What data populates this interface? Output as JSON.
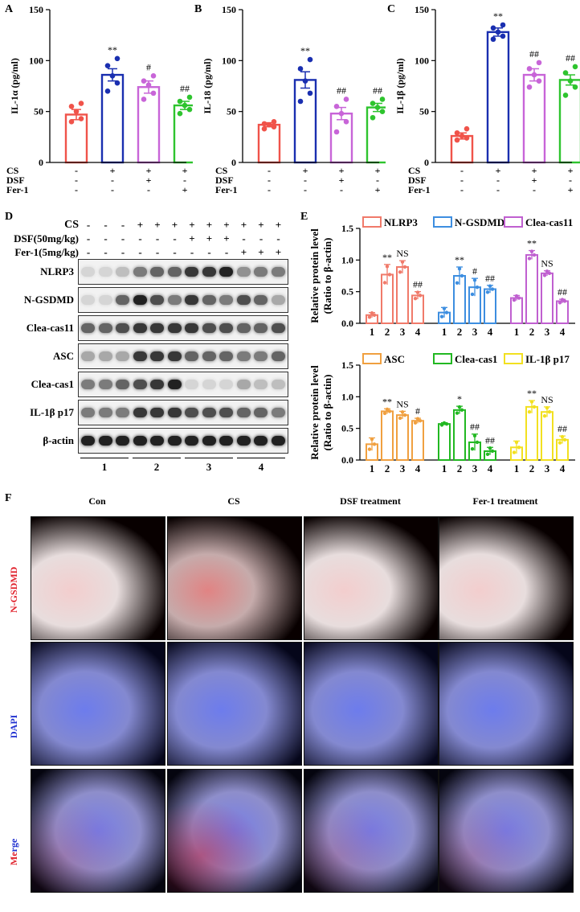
{
  "panels": {
    "A": "A",
    "B": "B",
    "C": "C",
    "D": "D",
    "E": "E",
    "F": "F"
  },
  "treatment_rows": {
    "labels": [
      "CS",
      "DSF",
      "Fer-1"
    ],
    "CS": [
      "-",
      "+",
      "+",
      "+"
    ],
    "DSF": [
      "-",
      "-",
      "+",
      "-"
    ],
    "Fer-1": [
      "-",
      "-",
      "-",
      "+"
    ]
  },
  "colors": {
    "group1": "#f0534a",
    "group2": "#1a2fb0",
    "group3": "#c865d8",
    "group4": "#2ec42e",
    "nlrp3": "#f07a6a",
    "ngsdmd": "#3d8ee0",
    "cleacas11": "#c060d0",
    "asc": "#f0a040",
    "cleacas1": "#22b822",
    "il1b": "#f2e020"
  },
  "chart_data": [
    {
      "id": "A",
      "type": "bar",
      "ylabel": "IL-1α  (pg/ml)",
      "ylim": [
        0,
        150
      ],
      "yticks": [
        0,
        50,
        100,
        150
      ],
      "categories": [
        "1",
        "2",
        "3",
        "4"
      ],
      "values": [
        47,
        86,
        74,
        56
      ],
      "errors": [
        5,
        6,
        6,
        4
      ],
      "points": [
        [
          40,
          43,
          50,
          55,
          58
        ],
        [
          70,
          78,
          85,
          95,
          102
        ],
        [
          62,
          68,
          76,
          80,
          85
        ],
        [
          48,
          52,
          56,
          60,
          64
        ]
      ],
      "annotations": [
        "",
        "**",
        "#",
        "##"
      ]
    },
    {
      "id": "B",
      "type": "bar",
      "ylabel": "IL-18  (pg/ml)",
      "ylim": [
        0,
        150
      ],
      "yticks": [
        0,
        50,
        100,
        150
      ],
      "categories": [
        "1",
        "2",
        "3",
        "4"
      ],
      "values": [
        37,
        81,
        48,
        54
      ],
      "errors": [
        2,
        8,
        6,
        4
      ],
      "points": [
        [
          33,
          35,
          37,
          38,
          40
        ],
        [
          60,
          68,
          80,
          92,
          101
        ],
        [
          30,
          40,
          48,
          55,
          62
        ],
        [
          44,
          50,
          54,
          58,
          62
        ]
      ],
      "annotations": [
        "",
        "**",
        "##",
        "##"
      ]
    },
    {
      "id": "C",
      "type": "bar",
      "ylabel": "IL-1β  (pg/ml)",
      "ylim": [
        0,
        150
      ],
      "yticks": [
        0,
        50,
        100,
        150
      ],
      "categories": [
        "1",
        "2",
        "3",
        "4"
      ],
      "values": [
        26,
        128,
        86,
        81
      ],
      "errors": [
        3,
        4,
        6,
        5
      ],
      "points": [
        [
          22,
          24,
          26,
          29,
          33
        ],
        [
          121,
          124,
          128,
          132,
          135
        ],
        [
          74,
          80,
          86,
          92,
          98
        ],
        [
          66,
          74,
          80,
          88,
          94
        ]
      ],
      "annotations": [
        "",
        "**",
        "##",
        "##"
      ]
    },
    {
      "id": "E1",
      "type": "bar",
      "ylabel_line1": "Relative protein level",
      "ylabel_line2": "(Ratio to β-actin)",
      "ylim": [
        0,
        1.5
      ],
      "yticks": [
        "0.0",
        "0.5",
        "1.0",
        "1.5"
      ],
      "groups": [
        {
          "name": "NLRP3",
          "color_key": "nlrp3",
          "values": [
            0.13,
            0.77,
            0.89,
            0.44
          ],
          "errors": [
            0.04,
            0.16,
            0.1,
            0.06
          ],
          "annotations": [
            "",
            "**",
            "NS",
            "##"
          ]
        },
        {
          "name": "N-GSDMD",
          "color_key": "ngsdmd",
          "values": [
            0.17,
            0.75,
            0.57,
            0.54
          ],
          "errors": [
            0.08,
            0.14,
            0.14,
            0.06
          ],
          "annotations": [
            "",
            "**",
            "#",
            "##"
          ]
        },
        {
          "name": "Clea-cas11",
          "color_key": "cleacas11",
          "values": [
            0.4,
            1.08,
            0.79,
            0.35
          ],
          "errors": [
            0.04,
            0.07,
            0.04,
            0.03
          ],
          "annotations": [
            "",
            "**",
            "NS",
            "##"
          ]
        }
      ],
      "categories": [
        "1",
        "2",
        "3",
        "4"
      ]
    },
    {
      "id": "E2",
      "type": "bar",
      "ylabel_line1": "Relative protein level",
      "ylabel_line2": "(Ratio to β-actin)",
      "ylim": [
        0,
        1.5
      ],
      "yticks": [
        "0.0",
        "0.5",
        "1.0",
        "1.5"
      ],
      "groups": [
        {
          "name": "ASC",
          "color_key": "asc",
          "values": [
            0.25,
            0.77,
            0.71,
            0.62
          ],
          "errors": [
            0.1,
            0.04,
            0.06,
            0.04
          ],
          "annotations": [
            "",
            "**",
            "NS",
            "#"
          ]
        },
        {
          "name": "Clea-cas1",
          "color_key": "cleacas1",
          "values": [
            0.57,
            0.79,
            0.28,
            0.14
          ],
          "errors": [
            0.02,
            0.06,
            0.13,
            0.06
          ],
          "annotations": [
            "",
            "*",
            "##",
            "##"
          ]
        },
        {
          "name": "IL-1β p17",
          "color_key": "il1b",
          "values": [
            0.2,
            0.84,
            0.76,
            0.32
          ],
          "errors": [
            0.1,
            0.1,
            0.08,
            0.06
          ],
          "annotations": [
            "",
            "**",
            "NS",
            "##"
          ]
        }
      ],
      "categories": [
        "1",
        "2",
        "3",
        "4"
      ]
    }
  ],
  "western": {
    "header_rows": [
      {
        "label": "CS",
        "signs": [
          "-",
          "-",
          "-",
          "+",
          "+",
          "+",
          "+",
          "+",
          "+",
          "+",
          "+",
          "+"
        ]
      },
      {
        "label": "DSF(50mg/kg)",
        "signs": [
          "-",
          "-",
          "-",
          "-",
          "-",
          "-",
          "+",
          "+",
          "+",
          "-",
          "-",
          "-"
        ]
      },
      {
        "label": "Fer-1(5mg/kg)",
        "signs": [
          "-",
          "-",
          "-",
          "-",
          "-",
          "-",
          "-",
          "-",
          "-",
          "+",
          "+",
          "+"
        ]
      }
    ],
    "blots": [
      "NLRP3",
      "N-GSDMD",
      "Clea-cas11",
      "ASC",
      "Clea-cas1",
      "IL-1β p17",
      "β-actin"
    ],
    "intensities": [
      [
        0.1,
        0.1,
        0.2,
        0.5,
        0.6,
        0.6,
        0.8,
        0.8,
        0.9,
        0.4,
        0.5,
        0.5
      ],
      [
        0.1,
        0.1,
        0.6,
        0.9,
        0.7,
        0.5,
        0.8,
        0.6,
        0.5,
        0.7,
        0.6,
        0.3
      ],
      [
        0.6,
        0.6,
        0.7,
        0.8,
        0.8,
        0.8,
        0.8,
        0.7,
        0.7,
        0.6,
        0.6,
        0.7
      ],
      [
        0.3,
        0.3,
        0.3,
        0.8,
        0.8,
        0.8,
        0.6,
        0.6,
        0.6,
        0.5,
        0.5,
        0.6
      ],
      [
        0.5,
        0.5,
        0.6,
        0.7,
        0.8,
        0.9,
        0.1,
        0.1,
        0.1,
        0.3,
        0.2,
        0.2
      ],
      [
        0.5,
        0.5,
        0.5,
        0.8,
        0.8,
        0.8,
        0.7,
        0.7,
        0.7,
        0.6,
        0.6,
        0.5
      ],
      [
        0.9,
        0.9,
        0.9,
        0.9,
        0.9,
        0.9,
        0.9,
        0.9,
        0.9,
        0.9,
        0.9,
        0.9
      ]
    ],
    "group_labels": [
      "1",
      "2",
      "3",
      "4"
    ]
  },
  "fluorescence": {
    "columns": [
      "Con",
      "CS",
      "DSF treatment",
      "Fer-1 treatment"
    ],
    "rows": [
      "N-GSDMD",
      "DAPI",
      "Merge"
    ]
  }
}
